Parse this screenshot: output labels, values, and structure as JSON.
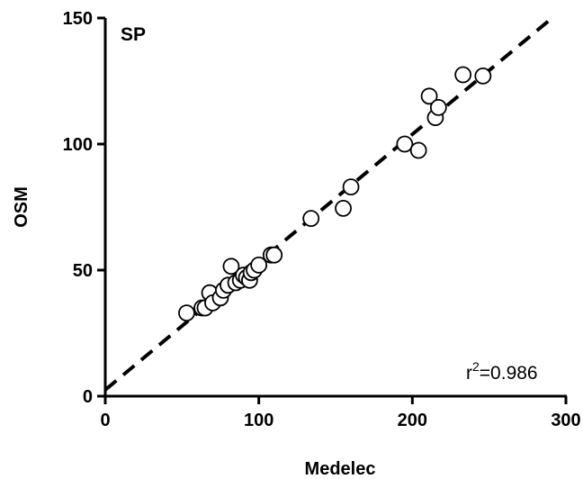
{
  "chart_data": {
    "type": "scatter",
    "panel_label": "SP",
    "xlabel": "Medelec",
    "ylabel": "OSM",
    "xlim": [
      0,
      300
    ],
    "ylim": [
      0,
      150
    ],
    "xticks": [
      "0",
      "100",
      "200",
      "300"
    ],
    "yticks": [
      "0",
      "50",
      "100",
      "150"
    ],
    "grid": false,
    "marker": "open-circle",
    "annotation": {
      "r_label": "r",
      "r_superscript": "2",
      "equals_value": "=0.986"
    },
    "fit_line": {
      "style": "dashed",
      "x": [
        0,
        291
      ],
      "y": [
        2.5,
        150
      ]
    },
    "points": [
      {
        "x": 53,
        "y": 33
      },
      {
        "x": 63,
        "y": 35
      },
      {
        "x": 65,
        "y": 35
      },
      {
        "x": 68,
        "y": 41
      },
      {
        "x": 70,
        "y": 37
      },
      {
        "x": 75,
        "y": 39
      },
      {
        "x": 77,
        "y": 42
      },
      {
        "x": 80,
        "y": 44
      },
      {
        "x": 82,
        "y": 51.5
      },
      {
        "x": 85,
        "y": 45
      },
      {
        "x": 88,
        "y": 46
      },
      {
        "x": 90,
        "y": 48
      },
      {
        "x": 92,
        "y": 47
      },
      {
        "x": 94,
        "y": 46
      },
      {
        "x": 95,
        "y": 49
      },
      {
        "x": 97,
        "y": 50
      },
      {
        "x": 100,
        "y": 52
      },
      {
        "x": 108,
        "y": 56
      },
      {
        "x": 110,
        "y": 56
      },
      {
        "x": 134,
        "y": 70.5
      },
      {
        "x": 155,
        "y": 74.5
      },
      {
        "x": 160,
        "y": 83
      },
      {
        "x": 195,
        "y": 100
      },
      {
        "x": 204,
        "y": 97.5
      },
      {
        "x": 211,
        "y": 119
      },
      {
        "x": 215,
        "y": 110.5
      },
      {
        "x": 217,
        "y": 114.5
      },
      {
        "x": 233,
        "y": 127.5
      },
      {
        "x": 246,
        "y": 127
      }
    ]
  }
}
